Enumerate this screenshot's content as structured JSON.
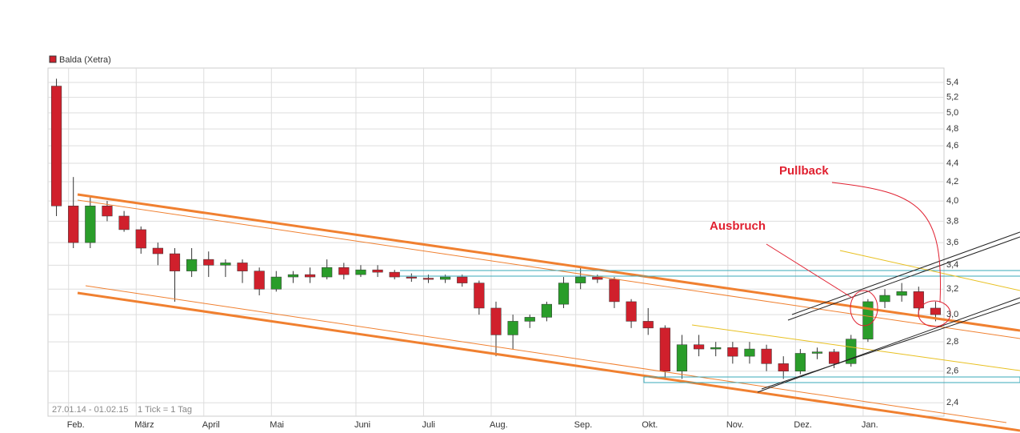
{
  "chart_data": {
    "type": "candlestick",
    "legend": "Balda (Xetra)",
    "legend_color": "#d0202c",
    "date_range": "27.01.14 - 01.02.15",
    "tick_note": "1 Tick = 1 Tag",
    "annotations": [
      "Ausbruch",
      "Pullback"
    ],
    "categories": [
      null,
      "Feb.",
      null,
      null,
      null,
      "März",
      null,
      null,
      null,
      "April",
      null,
      null,
      null,
      "Mai",
      null,
      null,
      null,
      null,
      "Juni",
      null,
      null,
      null,
      "Juli",
      null,
      null,
      null,
      "Aug.",
      null,
      null,
      null,
      null,
      "Sep.",
      null,
      null,
      null,
      "Okt.",
      null,
      null,
      null,
      null,
      "Nov.",
      null,
      null,
      null,
      "Dez.",
      null,
      null,
      null,
      "Jan.",
      null,
      null,
      null,
      null
    ],
    "open": [
      5.35,
      3.95,
      3.6,
      3.95,
      3.85,
      3.72,
      3.55,
      3.5,
      3.35,
      3.45,
      3.4,
      3.42,
      3.35,
      3.2,
      3.3,
      3.32,
      3.3,
      3.38,
      3.32,
      3.36,
      3.34,
      3.3,
      3.29,
      3.28,
      3.3,
      3.25,
      3.05,
      2.85,
      2.95,
      2.98,
      3.08,
      3.25,
      3.3,
      3.28,
      3.1,
      2.95,
      2.9,
      2.6,
      2.78,
      2.75,
      2.76,
      2.7,
      2.75,
      2.65,
      2.6,
      2.72,
      2.73,
      2.65,
      2.82,
      3.1,
      3.15,
      3.18,
      3.05
    ],
    "high": [
      5.45,
      4.25,
      4.05,
      4.0,
      3.9,
      3.75,
      3.6,
      3.55,
      3.55,
      3.52,
      3.45,
      3.45,
      3.38,
      3.35,
      3.35,
      3.38,
      3.45,
      3.42,
      3.4,
      3.4,
      3.36,
      3.33,
      3.32,
      3.32,
      3.32,
      3.27,
      3.1,
      3.0,
      3.0,
      3.1,
      3.3,
      3.38,
      3.32,
      3.3,
      3.12,
      3.05,
      2.92,
      2.85,
      2.85,
      2.8,
      2.8,
      2.8,
      2.78,
      2.7,
      2.75,
      2.76,
      2.75,
      2.85,
      3.12,
      3.2,
      3.25,
      3.22,
      3.1
    ],
    "low": [
      3.85,
      3.55,
      3.55,
      3.8,
      3.7,
      3.5,
      3.4,
      3.1,
      3.3,
      3.3,
      3.3,
      3.25,
      3.15,
      3.18,
      3.25,
      3.25,
      3.28,
      3.28,
      3.3,
      3.3,
      3.28,
      3.26,
      3.25,
      3.25,
      3.22,
      3.0,
      2.7,
      2.75,
      2.9,
      2.95,
      3.05,
      3.2,
      3.25,
      3.05,
      2.9,
      2.85,
      2.55,
      2.55,
      2.7,
      2.7,
      2.65,
      2.65,
      2.6,
      2.55,
      2.58,
      2.68,
      2.62,
      2.63,
      2.8,
      3.05,
      3.1,
      3.0,
      2.95
    ],
    "close": [
      3.95,
      3.6,
      3.95,
      3.85,
      3.72,
      3.55,
      3.5,
      3.35,
      3.45,
      3.4,
      3.42,
      3.35,
      3.2,
      3.3,
      3.32,
      3.3,
      3.38,
      3.32,
      3.36,
      3.34,
      3.3,
      3.29,
      3.28,
      3.3,
      3.25,
      3.05,
      2.85,
      2.95,
      2.98,
      3.08,
      3.25,
      3.3,
      3.28,
      3.1,
      2.95,
      2.9,
      2.6,
      2.78,
      2.75,
      2.76,
      2.7,
      2.75,
      2.65,
      2.6,
      2.72,
      2.73,
      2.65,
      2.82,
      3.1,
      3.15,
      3.18,
      3.05,
      3.0
    ],
    "up_color": "#2a9d2a",
    "down_color": "#d0202c",
    "log_scale": true,
    "ylim": [
      2.32,
      5.6
    ],
    "yticks": [
      {
        "value": 2.4,
        "label": "2,4"
      },
      {
        "value": 2.6,
        "label": "2,6"
      },
      {
        "value": 2.8,
        "label": "2,8"
      },
      {
        "value": 3.0,
        "label": "3,0"
      },
      {
        "value": 3.2,
        "label": "3,2"
      },
      {
        "value": 3.4,
        "label": "3,4"
      },
      {
        "value": 3.6,
        "label": "3,6"
      },
      {
        "value": 3.8,
        "label": "3,8"
      },
      {
        "value": 4.0,
        "label": "4,0"
      },
      {
        "value": 4.2,
        "label": "4,2"
      },
      {
        "value": 4.4,
        "label": "4,4"
      },
      {
        "value": 4.6,
        "label": "4,6"
      },
      {
        "value": 4.8,
        "label": "4,8"
      },
      {
        "value": 5.0,
        "label": "5,0"
      },
      {
        "value": 5.2,
        "label": "5,2"
      },
      {
        "value": 5.4,
        "label": "5,4"
      }
    ],
    "grid": true
  }
}
